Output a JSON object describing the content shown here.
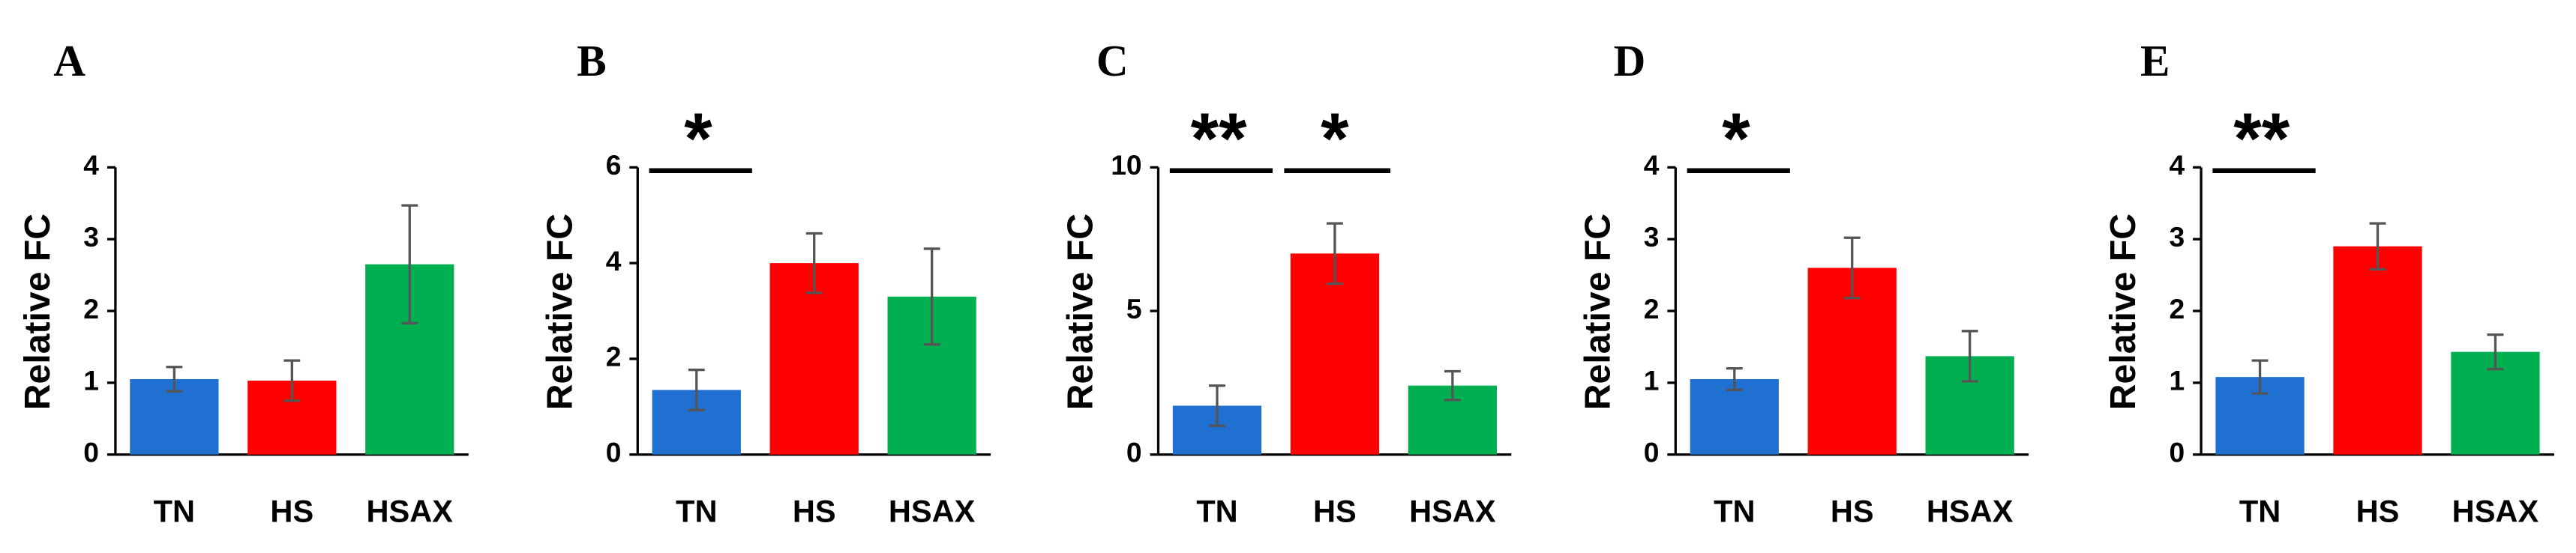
{
  "chart_data": [
    {
      "type": "bar",
      "panel": "A",
      "ylabel": "Relative FC",
      "categories": [
        "TN",
        "HS",
        "HSAX"
      ],
      "values": [
        1.05,
        1.03,
        2.65
      ],
      "errors": [
        0.17,
        0.28,
        0.82
      ],
      "colors": [
        "#1f70d0",
        "#ff0000",
        "#00b050"
      ],
      "ylim": [
        0,
        4
      ],
      "yticks": [
        0,
        1,
        2,
        3,
        4
      ],
      "annotations": []
    },
    {
      "type": "bar",
      "panel": "B",
      "ylabel": "Relative FC",
      "categories": [
        "TN",
        "HS",
        "HSAX"
      ],
      "values": [
        1.35,
        4.0,
        3.3
      ],
      "errors": [
        0.42,
        0.62,
        1.0
      ],
      "colors": [
        "#1f70d0",
        "#ff0000",
        "#00b050"
      ],
      "ylim": [
        0,
        6
      ],
      "yticks": [
        0,
        2,
        4,
        6
      ],
      "annotations": [
        {
          "label": "*",
          "from": 0,
          "to": 1
        }
      ]
    },
    {
      "type": "bar",
      "panel": "C",
      "ylabel": "Relative FC",
      "categories": [
        "TN",
        "HS",
        "HSAX"
      ],
      "values": [
        1.7,
        7.0,
        2.4
      ],
      "errors": [
        0.7,
        1.05,
        0.5
      ],
      "colors": [
        "#1f70d0",
        "#ff0000",
        "#00b050"
      ],
      "ylim": [
        0,
        10
      ],
      "yticks": [
        0,
        5,
        10
      ],
      "annotations": [
        {
          "label": "**",
          "from": 0,
          "to": 1
        },
        {
          "label": "*",
          "from": 1,
          "to": 2
        }
      ]
    },
    {
      "type": "bar",
      "panel": "D",
      "ylabel": "Relative FC",
      "categories": [
        "TN",
        "HS",
        "HSAX"
      ],
      "values": [
        1.05,
        2.6,
        1.37
      ],
      "errors": [
        0.15,
        0.42,
        0.35
      ],
      "colors": [
        "#1f70d0",
        "#ff0000",
        "#00b050"
      ],
      "ylim": [
        0,
        4
      ],
      "yticks": [
        0,
        1,
        2,
        3,
        4
      ],
      "annotations": [
        {
          "label": "*",
          "from": 0,
          "to": 1
        }
      ]
    },
    {
      "type": "bar",
      "panel": "E",
      "ylabel": "Relative FC",
      "categories": [
        "TN",
        "HS",
        "HSAX"
      ],
      "values": [
        1.08,
        2.9,
        1.43
      ],
      "errors": [
        0.23,
        0.32,
        0.24
      ],
      "colors": [
        "#1f70d0",
        "#ff0000",
        "#00b050"
      ],
      "ylim": [
        0,
        4
      ],
      "yticks": [
        0,
        1,
        2,
        3,
        4
      ],
      "annotations": [
        {
          "label": "**",
          "from": 0,
          "to": 1
        }
      ]
    }
  ]
}
